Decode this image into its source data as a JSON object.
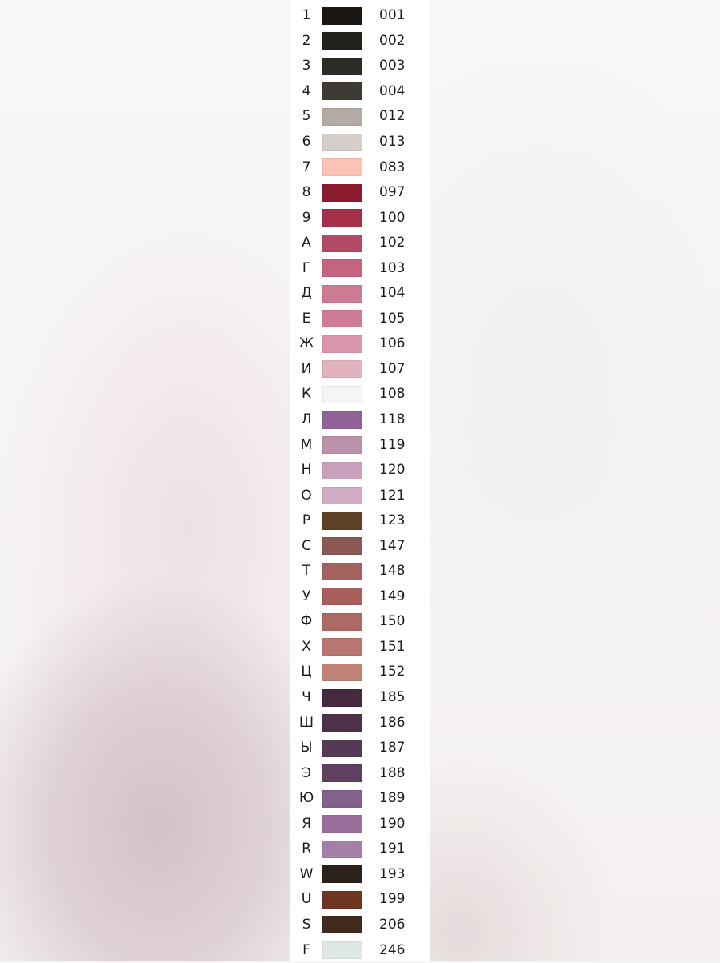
{
  "background": {
    "base_color": "#f7f6f5",
    "left_blur_tint": "#d8c7cc",
    "pink_tint": "#eddfe5",
    "right_bottom_tint": "#e6dadb"
  },
  "legend": {
    "panel_color": "#ffffff",
    "text_color": "#1b1b1b",
    "rows": [
      {
        "symbol": "1",
        "code": "001",
        "color": "#1a1714"
      },
      {
        "symbol": "2",
        "code": "002",
        "color": "#23221c"
      },
      {
        "symbol": "3",
        "code": "003",
        "color": "#2c2b25"
      },
      {
        "symbol": "4",
        "code": "004",
        "color": "#3e3a35"
      },
      {
        "symbol": "5",
        "code": "012",
        "color": "#b3aaa5"
      },
      {
        "symbol": "6",
        "code": "013",
        "color": "#d5cec9"
      },
      {
        "symbol": "7",
        "code": "083",
        "color": "#fcc2b3"
      },
      {
        "symbol": "8",
        "code": "097",
        "color": "#8b1c2e"
      },
      {
        "symbol": "9",
        "code": "100",
        "color": "#a43049"
      },
      {
        "symbol": "А",
        "code": "102",
        "color": "#b14a64"
      },
      {
        "symbol": "Г",
        "code": "103",
        "color": "#c4647f"
      },
      {
        "symbol": "Д",
        "code": "104",
        "color": "#cc7b93"
      },
      {
        "symbol": "Е",
        "code": "105",
        "color": "#ce7c95"
      },
      {
        "symbol": "Ж",
        "code": "106",
        "color": "#da97ac"
      },
      {
        "symbol": "И",
        "code": "107",
        "color": "#e2b2bf"
      },
      {
        "symbol": "К",
        "code": "108",
        "color": "#f5f4f6"
      },
      {
        "symbol": "Л",
        "code": "118",
        "color": "#906397"
      },
      {
        "symbol": "М",
        "code": "119",
        "color": "#bb90a9"
      },
      {
        "symbol": "Н",
        "code": "120",
        "color": "#c9a1bc"
      },
      {
        "symbol": "О",
        "code": "121",
        "color": "#d3aac3"
      },
      {
        "symbol": "Р",
        "code": "123",
        "color": "#5e4126"
      },
      {
        "symbol": "С",
        "code": "147",
        "color": "#8c5853"
      },
      {
        "symbol": "Т",
        "code": "148",
        "color": "#a2635e"
      },
      {
        "symbol": "У",
        "code": "149",
        "color": "#a75f5a"
      },
      {
        "symbol": "Ф",
        "code": "150",
        "color": "#ad6a64"
      },
      {
        "symbol": "Х",
        "code": "151",
        "color": "#b7766f"
      },
      {
        "symbol": "Ц",
        "code": "152",
        "color": "#c08178"
      },
      {
        "symbol": "Ч",
        "code": "185",
        "color": "#44293f"
      },
      {
        "symbol": "Ш",
        "code": "186",
        "color": "#4e3049"
      },
      {
        "symbol": "Ы",
        "code": "187",
        "color": "#543a54"
      },
      {
        "symbol": "Э",
        "code": "188",
        "color": "#5e4161"
      },
      {
        "symbol": "Ю",
        "code": "189",
        "color": "#82618a"
      },
      {
        "symbol": "Я",
        "code": "190",
        "color": "#9a6f9c"
      },
      {
        "symbol": "R",
        "code": "191",
        "color": "#a67fa9"
      },
      {
        "symbol": "W",
        "code": "193",
        "color": "#2b211a"
      },
      {
        "symbol": "U",
        "code": "199",
        "color": "#6e3520"
      },
      {
        "symbol": "S",
        "code": "206",
        "color": "#402a1d"
      },
      {
        "symbol": "F",
        "code": "246",
        "color": "#dde8e5"
      }
    ]
  }
}
